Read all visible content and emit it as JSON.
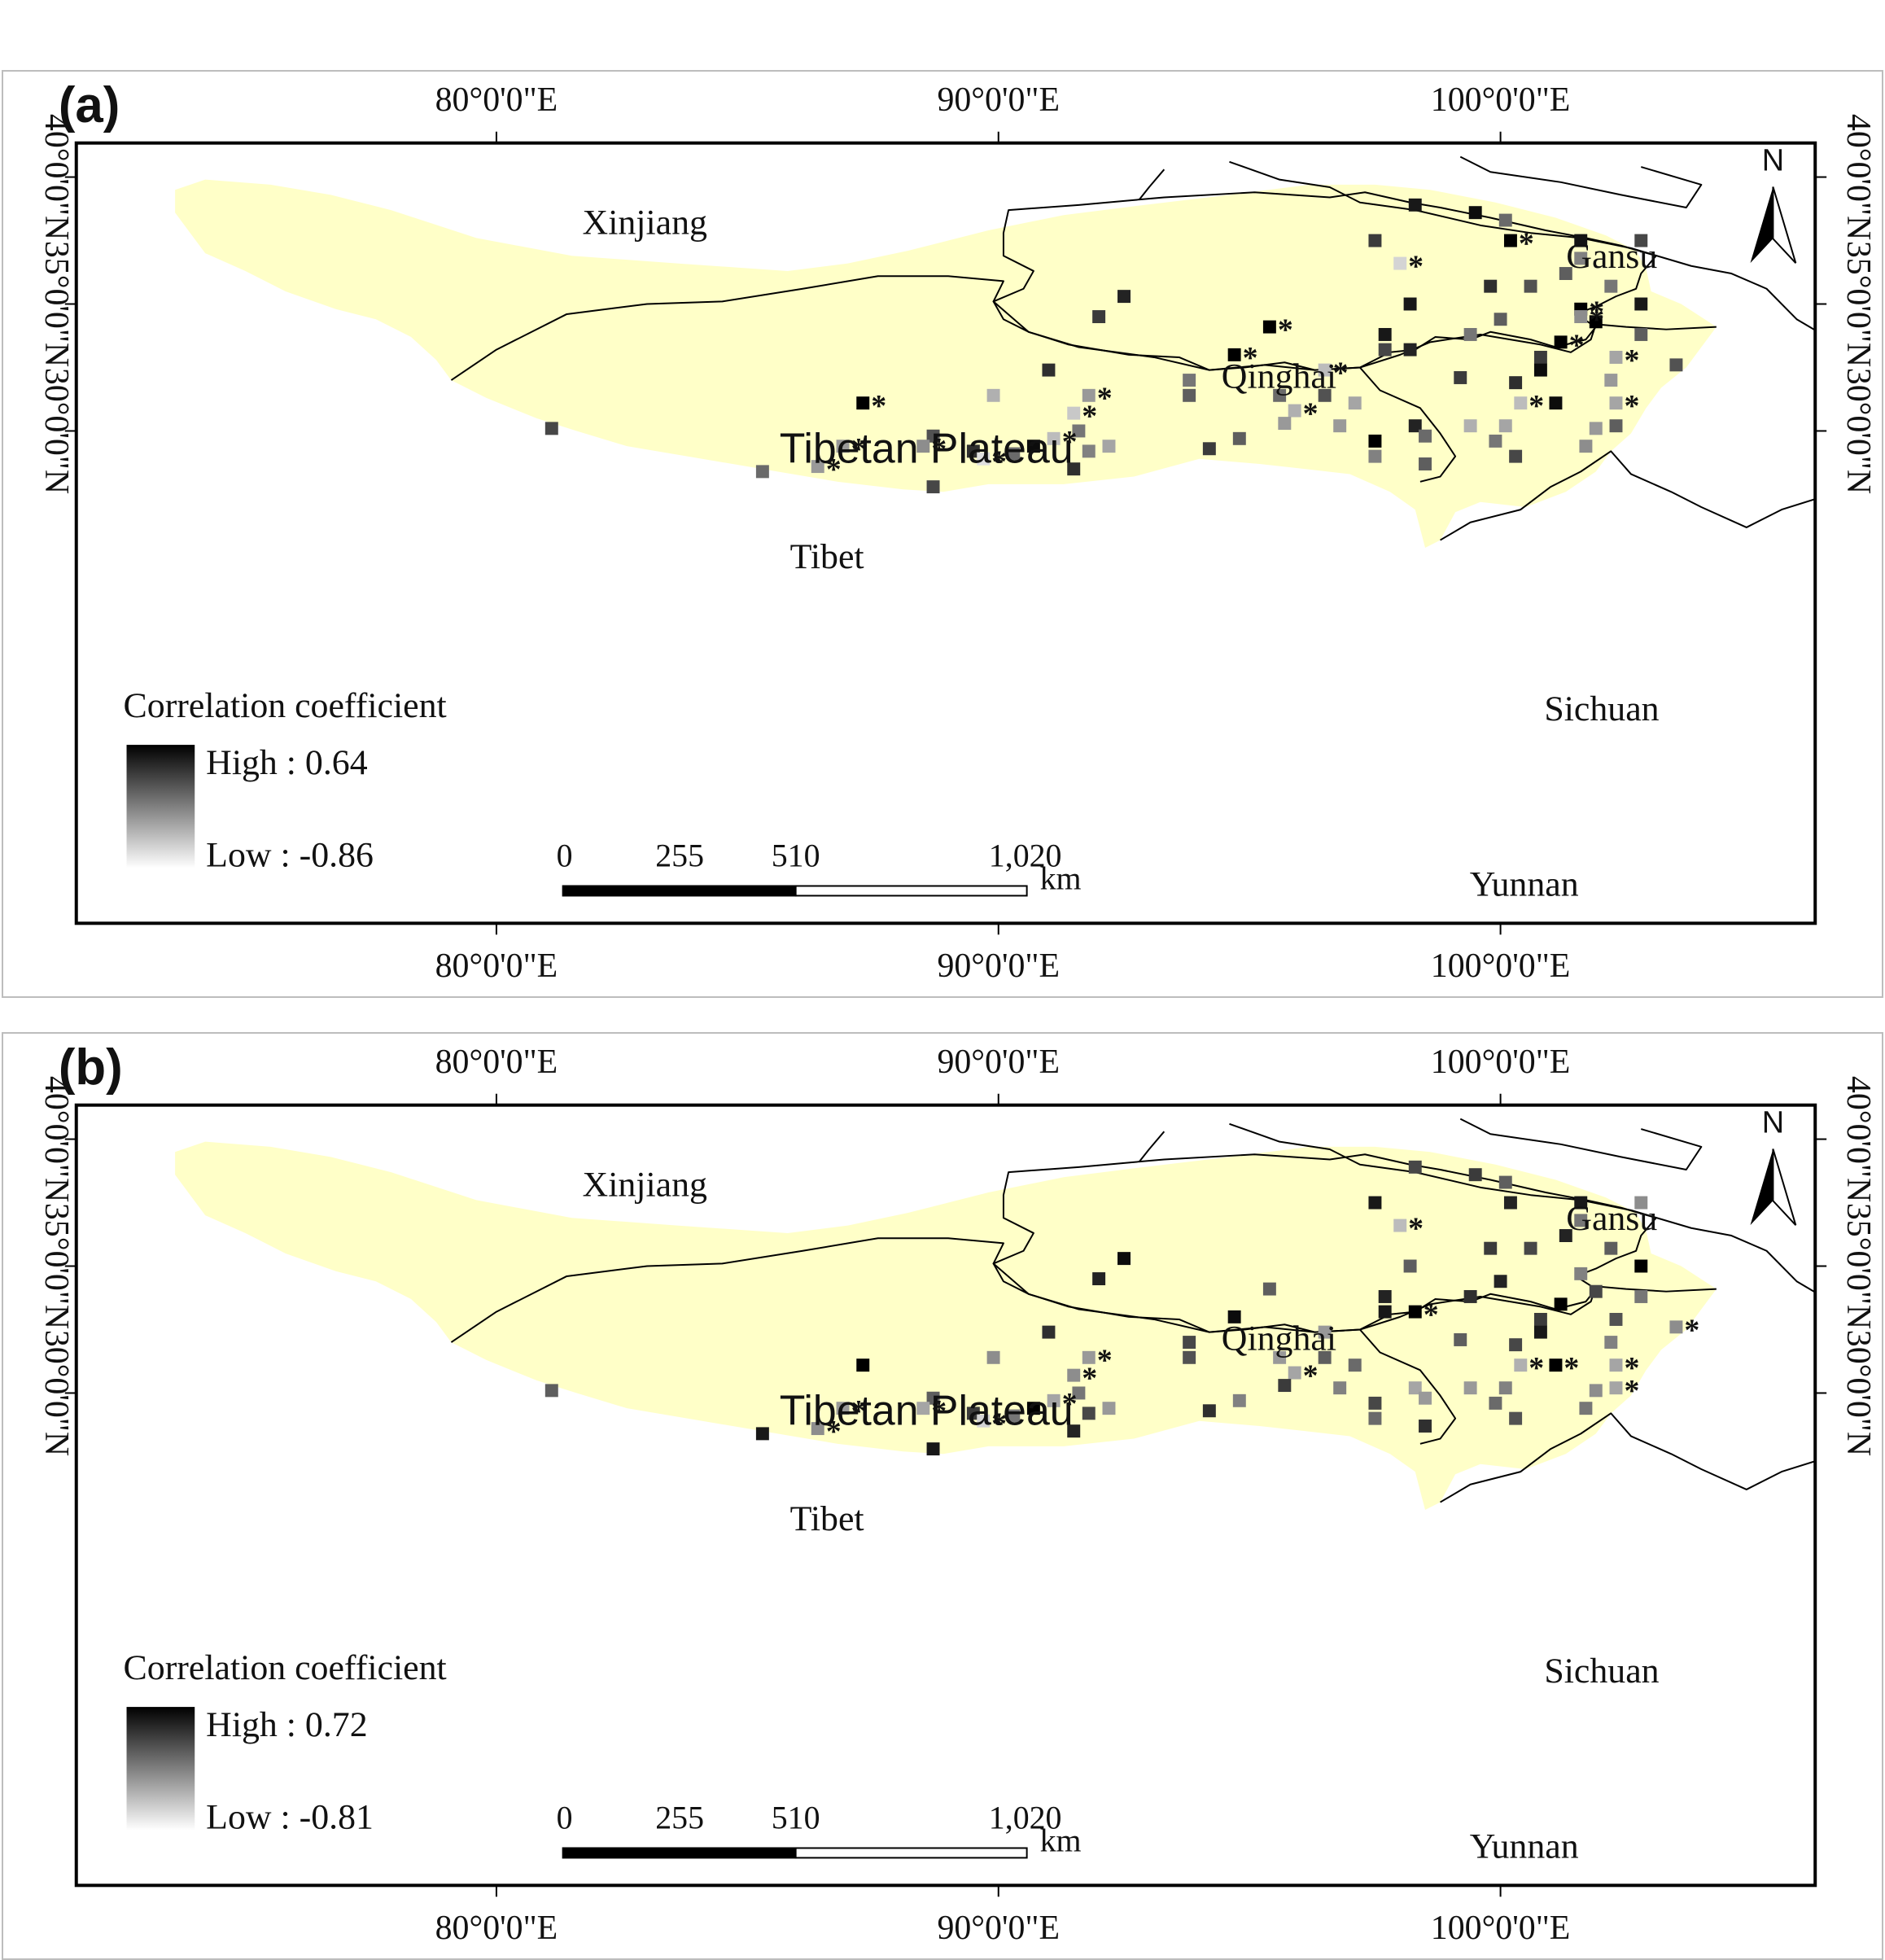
{
  "panels": [
    {
      "id": "a",
      "panel_label": "(a)",
      "legend": {
        "title": "Correlation coefficient",
        "high": "High : 0.64",
        "low": "Low : -0.86"
      },
      "stations": [
        [
          98.3,
          38.9,
          0.9,
          false
        ],
        [
          99.5,
          38.6,
          0.95,
          false
        ],
        [
          100.1,
          38.3,
          0.55,
          false
        ],
        [
          100.2,
          37.5,
          1.0,
          true
        ],
        [
          101.6,
          37.5,
          0.92,
          false
        ],
        [
          102.8,
          37.5,
          0.7,
          false
        ],
        [
          97.5,
          37.5,
          0.75,
          false
        ],
        [
          98,
          36.6,
          0.1,
          true
        ],
        [
          101.3,
          36.2,
          0.6,
          false
        ],
        [
          101.6,
          36.8,
          0.45,
          false
        ],
        [
          102.2,
          35.7,
          0.5,
          false
        ],
        [
          100.6,
          35.7,
          0.65,
          false
        ],
        [
          99.8,
          35.7,
          0.8,
          false
        ],
        [
          98.2,
          35.0,
          0.9,
          false
        ],
        [
          102.8,
          35.0,
          0.9,
          false
        ],
        [
          101.6,
          34.8,
          1.0,
          true
        ],
        [
          101.9,
          34.3,
          1.0,
          false
        ],
        [
          101.6,
          34.5,
          0.4,
          true
        ],
        [
          100.0,
          34.4,
          0.6,
          false
        ],
        [
          97.7,
          33.8,
          0.9,
          false
        ],
        [
          101.2,
          33.5,
          1.0,
          true
        ],
        [
          102.8,
          33.8,
          0.6,
          false
        ],
        [
          99.4,
          33.8,
          0.5,
          false
        ],
        [
          97.7,
          33.2,
          0.7,
          false
        ],
        [
          98.2,
          33.2,
          0.85,
          false
        ],
        [
          100.8,
          32.9,
          0.75,
          false
        ],
        [
          102.3,
          32.9,
          0.3,
          true
        ],
        [
          103.5,
          32.6,
          0.65,
          false
        ],
        [
          95.4,
          34.1,
          1.0,
          true
        ],
        [
          94.7,
          33.0,
          1.0,
          true
        ],
        [
          96.5,
          32.4,
          0.2,
          true
        ],
        [
          99.2,
          32.1,
          0.75,
          false
        ],
        [
          100.3,
          31.9,
          0.8,
          false
        ],
        [
          100.8,
          32.4,
          0.95,
          false
        ],
        [
          102.2,
          32.0,
          0.35,
          false
        ],
        [
          91.0,
          32.4,
          0.8,
          false
        ],
        [
          92.0,
          34.5,
          0.75,
          false
        ],
        [
          92.5,
          35.3,
          0.85,
          false
        ],
        [
          87.3,
          31.1,
          1.0,
          true
        ],
        [
          89.9,
          31.4,
          0.25,
          false
        ],
        [
          91.8,
          31.4,
          0.35,
          true
        ],
        [
          93.8,
          31.4,
          0.6,
          false
        ],
        [
          93.8,
          32.0,
          0.5,
          false
        ],
        [
          95.6,
          31.4,
          0.55,
          false
        ],
        [
          96.5,
          31.4,
          0.65,
          false
        ],
        [
          95.9,
          30.8,
          0.25,
          true
        ],
        [
          97.1,
          31.1,
          0.3,
          false
        ],
        [
          96.8,
          30.2,
          0.35,
          false
        ],
        [
          98.3,
          30.2,
          0.85,
          false
        ],
        [
          98.5,
          29.8,
          0.55,
          false
        ],
        [
          99.4,
          30.2,
          0.25,
          false
        ],
        [
          100.1,
          30.2,
          0.3,
          false
        ],
        [
          101.1,
          31.1,
          0.95,
          false
        ],
        [
          100.4,
          31.1,
          0.2,
          true
        ],
        [
          102.3,
          31.1,
          0.3,
          true
        ],
        [
          102.3,
          30.2,
          0.6,
          false
        ],
        [
          101.9,
          30.1,
          0.35,
          false
        ],
        [
          101.7,
          29.4,
          0.4,
          false
        ],
        [
          100.3,
          29.0,
          0.7,
          false
        ],
        [
          97.5,
          29.6,
          1.0,
          false
        ],
        [
          99.9,
          29.6,
          0.5,
          false
        ],
        [
          95.7,
          30.3,
          0.35,
          false
        ],
        [
          98.5,
          28.7,
          0.6,
          false
        ],
        [
          97.5,
          29.0,
          0.45,
          false
        ],
        [
          91.5,
          30.7,
          0.15,
          true
        ],
        [
          91.6,
          30.0,
          0.5,
          false
        ],
        [
          91.1,
          29.7,
          0.2,
          true
        ],
        [
          92.2,
          29.4,
          0.3,
          false
        ],
        [
          94.8,
          29.7,
          0.6,
          false
        ],
        [
          94.2,
          29.3,
          0.75,
          false
        ],
        [
          90.7,
          29.4,
          0.95,
          false
        ],
        [
          90.3,
          29.1,
          0.55,
          false
        ],
        [
          89.5,
          29.2,
          0.8,
          false
        ],
        [
          88.7,
          29.8,
          0.65,
          false
        ],
        [
          88.5,
          29.4,
          0.4,
          true
        ],
        [
          89.7,
          28.9,
          0.05,
          true
        ],
        [
          91.5,
          28.5,
          0.8,
          false
        ],
        [
          91.8,
          29.2,
          0.45,
          false
        ],
        [
          86.9,
          29.4,
          0.35,
          true
        ],
        [
          86.4,
          28.6,
          0.35,
          true
        ],
        [
          85.3,
          28.4,
          0.55,
          false
        ],
        [
          88.7,
          27.8,
          0.7,
          false
        ],
        [
          81.1,
          30.1,
          0.7,
          false
        ]
      ]
    },
    {
      "id": "b",
      "panel_label": "(b)",
      "legend": {
        "title": "Correlation coefficient",
        "high": "High : 0.72",
        "low": "Low : -0.81"
      },
      "stations": [
        [
          98.3,
          38.9,
          0.7,
          false
        ],
        [
          99.5,
          38.6,
          0.75,
          false
        ],
        [
          100.1,
          38.3,
          0.6,
          false
        ],
        [
          100.2,
          37.5,
          0.85,
          false
        ],
        [
          101.6,
          37.5,
          0.9,
          false
        ],
        [
          102.8,
          37.5,
          0.4,
          false
        ],
        [
          97.5,
          37.5,
          0.9,
          false
        ],
        [
          98,
          36.6,
          0.2,
          true
        ],
        [
          101.3,
          36.2,
          0.85,
          false
        ],
        [
          101.6,
          36.8,
          0.5,
          false
        ],
        [
          102.2,
          35.7,
          0.6,
          false
        ],
        [
          100.6,
          35.7,
          0.7,
          false
        ],
        [
          99.8,
          35.7,
          0.75,
          false
        ],
        [
          98.2,
          35.0,
          0.6,
          false
        ],
        [
          102.8,
          35.0,
          1.0,
          false
        ],
        [
          101.6,
          34.7,
          0.45,
          false
        ],
        [
          101.9,
          34.0,
          0.7,
          false
        ],
        [
          101.2,
          33.5,
          1.0,
          false
        ],
        [
          100.0,
          34.4,
          0.85,
          false
        ],
        [
          97.7,
          33.8,
          0.85,
          false
        ],
        [
          102.8,
          33.8,
          0.5,
          false
        ],
        [
          99.4,
          33.8,
          0.8,
          false
        ],
        [
          97.7,
          33.2,
          0.9,
          false
        ],
        [
          98.3,
          33.2,
          1.0,
          true
        ],
        [
          100.8,
          32.9,
          0.75,
          false
        ],
        [
          102.3,
          32.9,
          0.65,
          false
        ],
        [
          103.5,
          32.6,
          0.4,
          true
        ],
        [
          95.4,
          34.1,
          0.6,
          false
        ],
        [
          94.7,
          33.0,
          0.95,
          false
        ],
        [
          96.5,
          32.4,
          0.35,
          false
        ],
        [
          99.2,
          32.1,
          0.6,
          false
        ],
        [
          100.3,
          31.9,
          0.7,
          false
        ],
        [
          100.8,
          32.4,
          0.9,
          false
        ],
        [
          102.2,
          32.0,
          0.45,
          false
        ],
        [
          91.0,
          32.4,
          0.8,
          false
        ],
        [
          92.0,
          34.5,
          0.85,
          false
        ],
        [
          92.5,
          35.3,
          0.95,
          false
        ],
        [
          87.3,
          31.1,
          1.0,
          false
        ],
        [
          89.9,
          31.4,
          0.4,
          false
        ],
        [
          91.8,
          31.4,
          0.35,
          true
        ],
        [
          93.8,
          31.4,
          0.65,
          false
        ],
        [
          93.8,
          32.0,
          0.7,
          false
        ],
        [
          95.6,
          31.4,
          0.35,
          false
        ],
        [
          96.5,
          31.4,
          0.6,
          false
        ],
        [
          95.9,
          30.8,
          0.3,
          true
        ],
        [
          97.1,
          31.1,
          0.55,
          false
        ],
        [
          96.8,
          30.2,
          0.45,
          false
        ],
        [
          98.3,
          30.2,
          0.3,
          false
        ],
        [
          98.5,
          29.8,
          0.35,
          false
        ],
        [
          99.4,
          30.2,
          0.35,
          false
        ],
        [
          100.1,
          30.2,
          0.45,
          false
        ],
        [
          101.1,
          31.1,
          1.0,
          true
        ],
        [
          100.4,
          31.1,
          0.25,
          true
        ],
        [
          102.3,
          31.1,
          0.3,
          true
        ],
        [
          102.3,
          30.2,
          0.3,
          true
        ],
        [
          101.9,
          30.1,
          0.4,
          false
        ],
        [
          101.7,
          29.4,
          0.5,
          false
        ],
        [
          100.3,
          29.0,
          0.65,
          false
        ],
        [
          97.5,
          29.6,
          0.7,
          false
        ],
        [
          99.9,
          29.6,
          0.55,
          false
        ],
        [
          95.7,
          30.3,
          0.75,
          false
        ],
        [
          98.5,
          28.7,
          0.8,
          false
        ],
        [
          97.5,
          29.0,
          0.55,
          false
        ],
        [
          91.5,
          30.7,
          0.4,
          true
        ],
        [
          91.6,
          30.0,
          0.5,
          false
        ],
        [
          91.1,
          29.7,
          0.3,
          true
        ],
        [
          92.2,
          29.4,
          0.35,
          false
        ],
        [
          94.8,
          29.7,
          0.45,
          false
        ],
        [
          94.2,
          29.3,
          0.8,
          false
        ],
        [
          90.7,
          29.4,
          1.0,
          false
        ],
        [
          90.3,
          29.1,
          0.5,
          false
        ],
        [
          89.5,
          29.2,
          0.75,
          false
        ],
        [
          88.7,
          29.8,
          0.6,
          false
        ],
        [
          88.5,
          29.4,
          0.3,
          true
        ],
        [
          89.7,
          28.9,
          0.1,
          true
        ],
        [
          91.5,
          28.5,
          0.85,
          false
        ],
        [
          91.8,
          29.2,
          0.7,
          false
        ],
        [
          86.9,
          29.4,
          0.35,
          true
        ],
        [
          86.4,
          28.6,
          0.4,
          true
        ],
        [
          85.3,
          28.4,
          0.9,
          false
        ],
        [
          88.7,
          27.8,
          0.9,
          false
        ],
        [
          81.1,
          30.1,
          0.6,
          false
        ]
      ]
    }
  ],
  "axes": {
    "top_ticks": [
      "80°0'0\"E",
      "90°0'0\"E",
      "100°0'0\"E"
    ],
    "bottom_ticks": [
      "80°0'0\"E",
      "90°0'0\"E",
      "100°0'0\"E"
    ],
    "left_ticks": [
      "40°0'0\"N",
      "35°0'0\"N",
      "30°0'0\"N"
    ],
    "right_ticks": [
      "40°0'0\"N",
      "35°0'0\"N",
      "30°0'0\"N"
    ]
  },
  "region_labels": {
    "xinjiang": "Xinjiang",
    "qinghai": "Qinghai",
    "tibetan_plateau": "Tibetan Plateau",
    "tibet": "Tibet",
    "sichuan": "Sichuan",
    "gansu": "Gansu",
    "yunnan": "Yunnan"
  },
  "north_arrow": "N",
  "scale_bar": {
    "labels": [
      "0",
      "255",
      "510",
      "1,020"
    ],
    "unit": "km"
  },
  "significance_marker": "*",
  "colors": {
    "plateau_fill": "#ffffc8",
    "frame": "#000000",
    "marker_high": "#000000",
    "marker_low": "#ffffff"
  }
}
